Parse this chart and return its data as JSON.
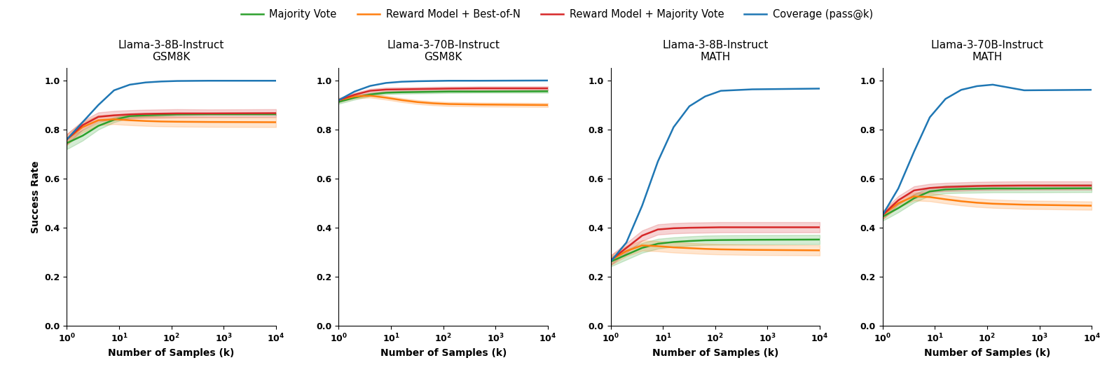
{
  "subplots": [
    {
      "title": "Llama-3-8B-Instruct\nGSM8K",
      "ylim": [
        0.0,
        1.05
      ],
      "yticks": [
        0.0,
        0.2,
        0.4,
        0.6,
        0.8,
        1.0
      ],
      "show_ylabel": true,
      "series": {
        "majority_vote": {
          "mean": [
            0.745,
            0.775,
            0.815,
            0.84,
            0.855,
            0.858,
            0.86,
            0.862,
            0.863,
            0.863
          ],
          "ci_low": [
            0.72,
            0.755,
            0.8,
            0.83,
            0.848,
            0.852,
            0.854,
            0.857,
            0.858,
            0.858
          ],
          "ci_high": [
            0.768,
            0.798,
            0.83,
            0.85,
            0.862,
            0.865,
            0.866,
            0.867,
            0.868,
            0.868
          ]
        },
        "rm_bestn": {
          "mean": [
            0.76,
            0.81,
            0.838,
            0.842,
            0.838,
            0.835,
            0.833,
            0.832,
            0.831,
            0.83
          ],
          "ci_low": [
            0.738,
            0.788,
            0.818,
            0.822,
            0.818,
            0.815,
            0.813,
            0.812,
            0.811,
            0.81
          ],
          "ci_high": [
            0.782,
            0.832,
            0.858,
            0.862,
            0.858,
            0.855,
            0.853,
            0.852,
            0.851,
            0.85
          ]
        },
        "rm_majority": {
          "mean": [
            0.76,
            0.818,
            0.852,
            0.858,
            0.862,
            0.864,
            0.865,
            0.866,
            0.866,
            0.867
          ],
          "ci_low": [
            0.738,
            0.8,
            0.834,
            0.84,
            0.845,
            0.847,
            0.848,
            0.849,
            0.85,
            0.851
          ],
          "ci_high": [
            0.782,
            0.836,
            0.87,
            0.876,
            0.879,
            0.881,
            0.882,
            0.883,
            0.882,
            0.883
          ]
        },
        "coverage": {
          "mean": [
            0.76,
            0.83,
            0.9,
            0.96,
            0.983,
            0.992,
            0.996,
            0.998,
            0.999,
            0.999
          ],
          "ci_low": null,
          "ci_high": null
        }
      }
    },
    {
      "title": "Llama-3-70B-Instruct\nGSM8K",
      "ylim": [
        0.0,
        1.05
      ],
      "yticks": [
        0.0,
        0.2,
        0.4,
        0.6,
        0.8,
        1.0
      ],
      "show_ylabel": false,
      "series": {
        "majority_vote": {
          "mean": [
            0.913,
            0.93,
            0.943,
            0.95,
            0.952,
            0.953,
            0.954,
            0.955,
            0.955,
            0.956
          ],
          "ci_low": [
            0.905,
            0.922,
            0.936,
            0.944,
            0.946,
            0.947,
            0.948,
            0.949,
            0.95,
            0.95
          ],
          "ci_high": [
            0.921,
            0.938,
            0.95,
            0.956,
            0.958,
            0.959,
            0.96,
            0.961,
            0.96,
            0.962
          ]
        },
        "rm_bestn": {
          "mean": [
            0.92,
            0.935,
            0.938,
            0.93,
            0.92,
            0.912,
            0.907,
            0.904,
            0.902,
            0.9
          ],
          "ci_low": [
            0.912,
            0.927,
            0.93,
            0.922,
            0.912,
            0.904,
            0.899,
            0.896,
            0.894,
            0.892
          ],
          "ci_high": [
            0.928,
            0.943,
            0.946,
            0.938,
            0.928,
            0.92,
            0.915,
            0.912,
            0.91,
            0.908
          ]
        },
        "rm_majority": {
          "mean": [
            0.92,
            0.942,
            0.958,
            0.963,
            0.964,
            0.965,
            0.966,
            0.967,
            0.968,
            0.968
          ],
          "ci_low": [
            0.912,
            0.934,
            0.95,
            0.955,
            0.956,
            0.957,
            0.958,
            0.959,
            0.96,
            0.96
          ],
          "ci_high": [
            0.928,
            0.95,
            0.966,
            0.971,
            0.972,
            0.973,
            0.974,
            0.975,
            0.976,
            0.976
          ]
        },
        "coverage": {
          "mean": [
            0.92,
            0.955,
            0.978,
            0.99,
            0.995,
            0.997,
            0.998,
            0.999,
            0.999,
            1.0
          ],
          "ci_low": null,
          "ci_high": null
        }
      }
    },
    {
      "title": "Llama-3-8B-Instruct\nMATH",
      "ylim": [
        0.0,
        1.05
      ],
      "yticks": [
        0.0,
        0.2,
        0.4,
        0.6,
        0.8,
        1.0
      ],
      "show_ylabel": false,
      "series": {
        "majority_vote": {
          "mean": [
            0.262,
            0.29,
            0.318,
            0.335,
            0.342,
            0.346,
            0.349,
            0.35,
            0.351,
            0.352
          ],
          "ci_low": [
            0.242,
            0.27,
            0.298,
            0.315,
            0.323,
            0.327,
            0.33,
            0.331,
            0.332,
            0.333
          ],
          "ci_high": [
            0.282,
            0.31,
            0.338,
            0.355,
            0.361,
            0.365,
            0.368,
            0.369,
            0.37,
            0.371
          ]
        },
        "rm_bestn": {
          "mean": [
            0.268,
            0.305,
            0.328,
            0.325,
            0.32,
            0.317,
            0.314,
            0.312,
            0.31,
            0.308
          ],
          "ci_low": [
            0.248,
            0.284,
            0.307,
            0.304,
            0.299,
            0.296,
            0.293,
            0.291,
            0.289,
            0.287
          ],
          "ci_high": [
            0.288,
            0.326,
            0.349,
            0.346,
            0.341,
            0.338,
            0.335,
            0.333,
            0.331,
            0.329
          ]
        },
        "rm_majority": {
          "mean": [
            0.268,
            0.318,
            0.368,
            0.393,
            0.398,
            0.4,
            0.401,
            0.402,
            0.402,
            0.402
          ],
          "ci_low": [
            0.248,
            0.298,
            0.347,
            0.372,
            0.377,
            0.379,
            0.38,
            0.381,
            0.381,
            0.381
          ],
          "ci_high": [
            0.288,
            0.338,
            0.389,
            0.414,
            0.419,
            0.421,
            0.422,
            0.423,
            0.423,
            0.423
          ]
        },
        "coverage": {
          "mean": [
            0.262,
            0.34,
            0.49,
            0.67,
            0.81,
            0.895,
            0.935,
            0.958,
            0.964,
            0.967
          ],
          "ci_low": null,
          "ci_high": null
        }
      }
    },
    {
      "title": "Llama-3-70B-Instruct\nMATH",
      "ylim": [
        0.0,
        1.05
      ],
      "yticks": [
        0.0,
        0.2,
        0.4,
        0.6,
        0.8,
        1.0
      ],
      "show_ylabel": false,
      "series": {
        "majority_vote": {
          "mean": [
            0.445,
            0.48,
            0.52,
            0.548,
            0.556,
            0.558,
            0.559,
            0.56,
            0.56,
            0.561
          ],
          "ci_low": [
            0.428,
            0.463,
            0.503,
            0.531,
            0.54,
            0.542,
            0.543,
            0.544,
            0.544,
            0.545
          ],
          "ci_high": [
            0.462,
            0.497,
            0.537,
            0.565,
            0.572,
            0.574,
            0.575,
            0.576,
            0.576,
            0.577
          ]
        },
        "rm_bestn": {
          "mean": [
            0.452,
            0.5,
            0.528,
            0.525,
            0.516,
            0.508,
            0.502,
            0.498,
            0.494,
            0.49
          ],
          "ci_low": [
            0.435,
            0.483,
            0.511,
            0.508,
            0.499,
            0.491,
            0.485,
            0.481,
            0.477,
            0.473
          ],
          "ci_high": [
            0.469,
            0.517,
            0.545,
            0.542,
            0.533,
            0.525,
            0.519,
            0.515,
            0.511,
            0.507
          ]
        },
        "rm_majority": {
          "mean": [
            0.452,
            0.512,
            0.552,
            0.562,
            0.566,
            0.568,
            0.57,
            0.571,
            0.572,
            0.572
          ],
          "ci_low": [
            0.435,
            0.495,
            0.535,
            0.545,
            0.549,
            0.551,
            0.553,
            0.554,
            0.555,
            0.555
          ],
          "ci_high": [
            0.469,
            0.529,
            0.569,
            0.579,
            0.583,
            0.585,
            0.587,
            0.588,
            0.589,
            0.589
          ]
        },
        "coverage": {
          "mean": [
            0.452,
            0.56,
            0.71,
            0.85,
            0.925,
            0.962,
            0.977,
            0.983,
            0.96,
            0.962
          ],
          "ci_low": null,
          "ci_high": null
        }
      }
    }
  ],
  "x_points": [
    1,
    2,
    4,
    8,
    16,
    32,
    64,
    128,
    512,
    10000
  ],
  "colors": {
    "majority_vote": "#2ca02c",
    "rm_bestn": "#ff7f0e",
    "rm_majority": "#d62728",
    "coverage": "#1f77b4"
  },
  "legend_labels": {
    "majority_vote": "Majority Vote",
    "rm_bestn": "Reward Model + Best-of-N",
    "rm_majority": "Reward Model + Majority Vote",
    "coverage": "Coverage (pass@k)"
  },
  "xlabel": "Number of Samples (k)",
  "ylabel": "Success Rate",
  "line_width": 1.8,
  "ci_alpha": 0.2
}
